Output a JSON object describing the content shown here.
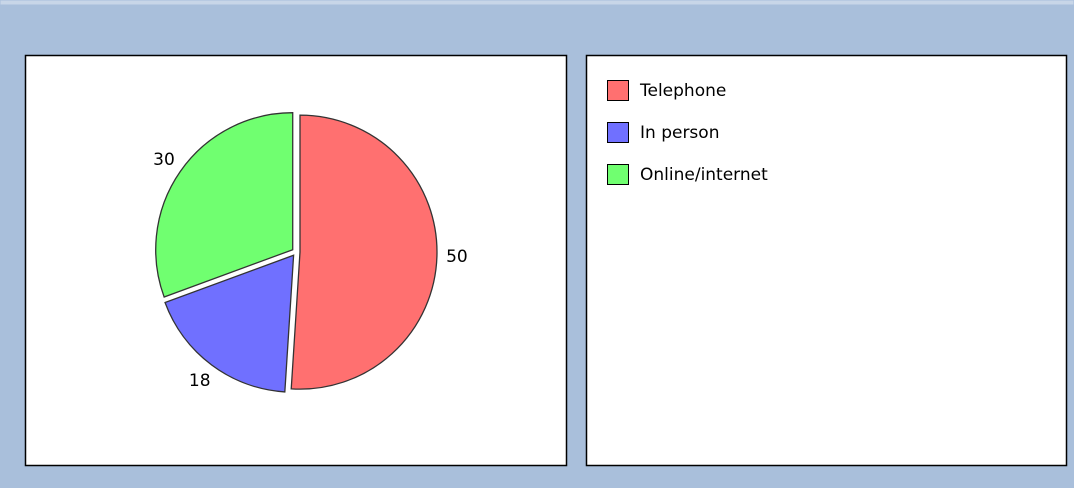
{
  "chart_data": {
    "type": "pie",
    "categories": [
      "Telephone",
      "In person",
      "Online/internet"
    ],
    "values": [
      50,
      18,
      30
    ],
    "colors": [
      "#ff7070",
      "#7070ff",
      "#70ff70"
    ],
    "legend": "right"
  }
}
